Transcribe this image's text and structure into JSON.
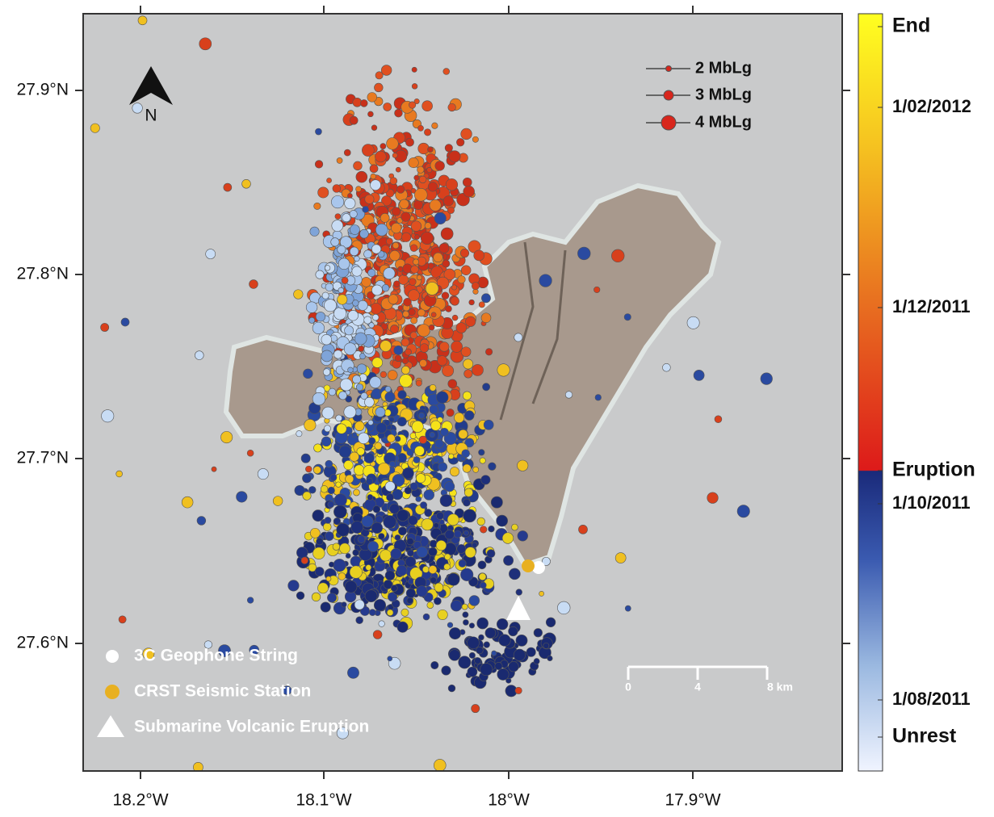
{
  "map": {
    "x_ticks": [
      "18.2°W",
      "18.1°W",
      "18°W",
      "17.9°W"
    ],
    "y_ticks": [
      "27.9°N",
      "27.8°N",
      "27.7°N",
      "27.6°N"
    ],
    "north": "N",
    "magnitude_legend": [
      "2 MbLg",
      "3 MbLg",
      "4 MbLg"
    ],
    "symbol_legend": [
      "3C Geophone String",
      "CRST Seismic Station",
      "Submarine Volcanic Eruption"
    ],
    "scale_bar": [
      "0",
      "4",
      "8 km"
    ]
  },
  "colorbar": {
    "labels": [
      "End",
      "1/02/2012",
      "1/12/2011",
      "Eruption",
      "1/10/2011",
      "1/08/2011",
      "Unrest"
    ]
  }
}
